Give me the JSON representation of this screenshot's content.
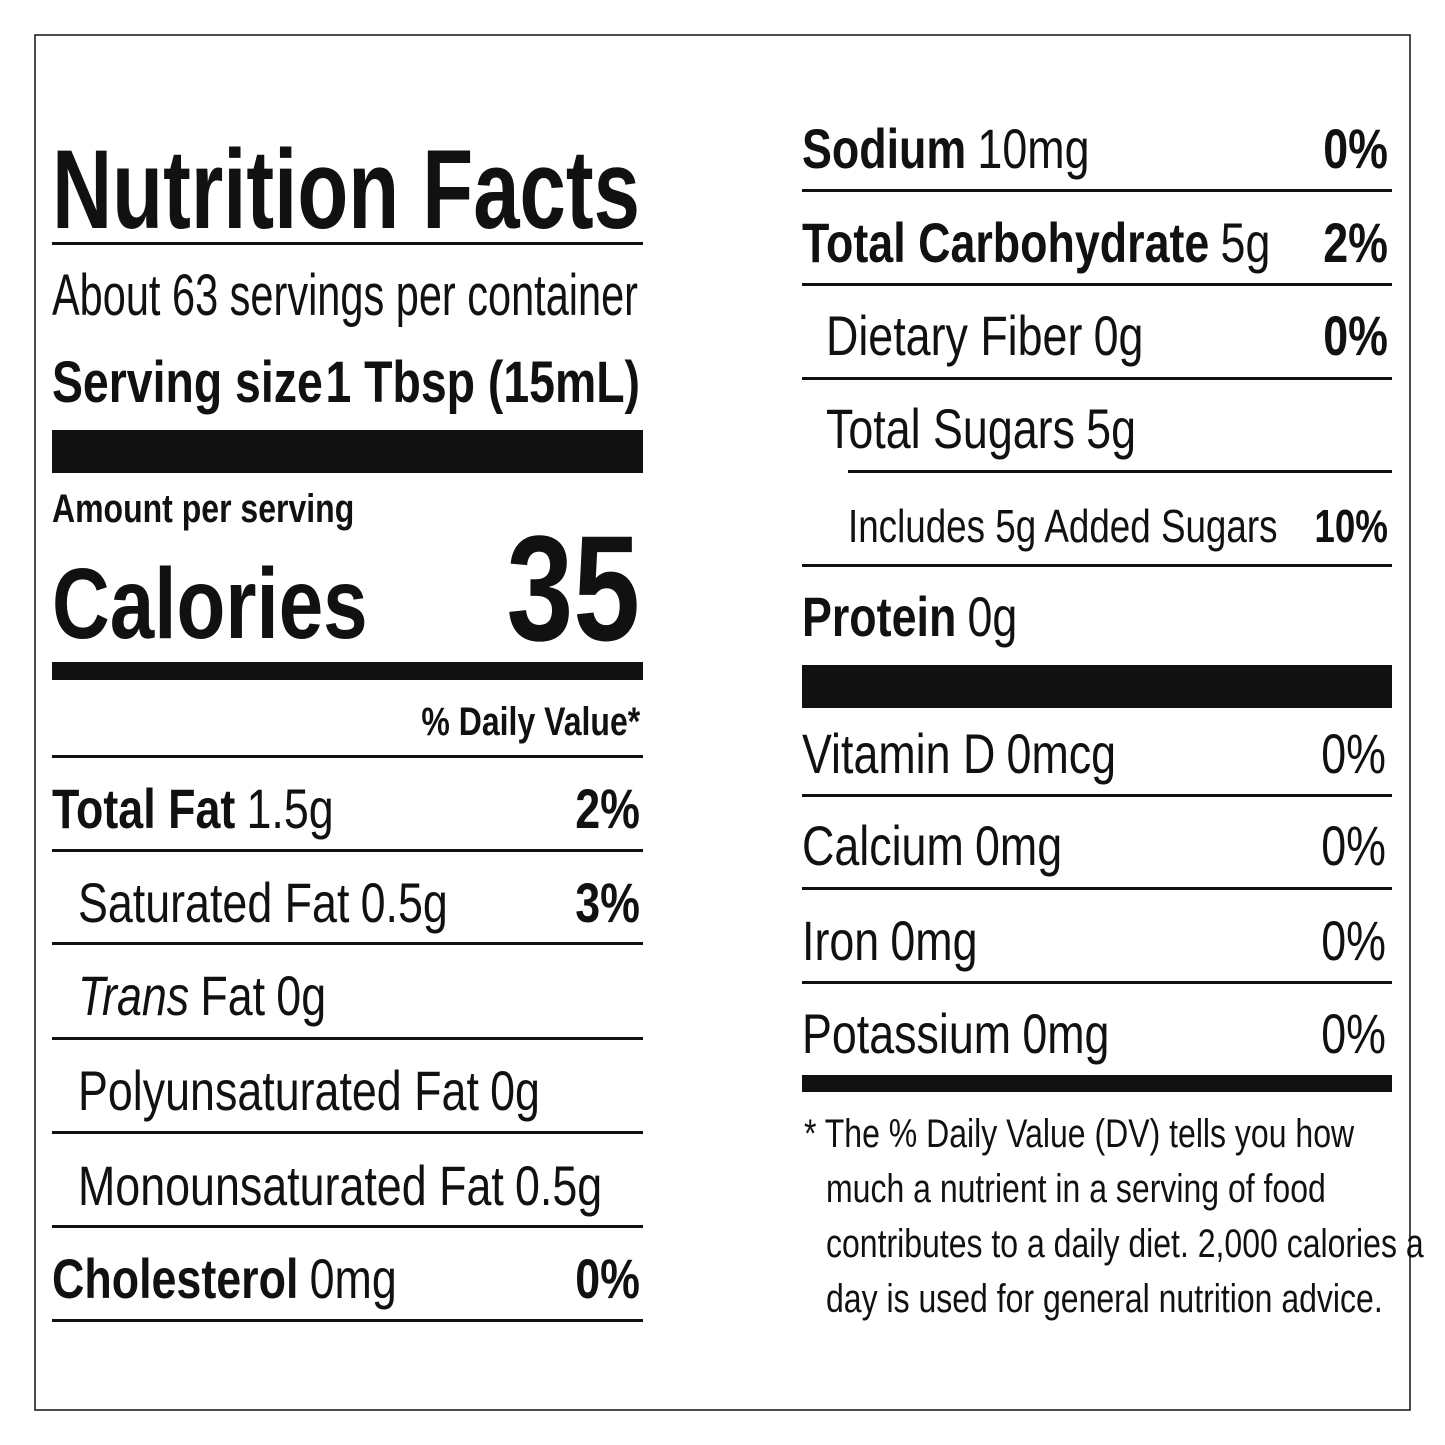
{
  "title": "Nutrition Facts",
  "servings_per_container": "About 63 servings per container",
  "serving_size": {
    "label": "Serving size",
    "value": "1 Tbsp (15mL)"
  },
  "amount_per_serving": "Amount per serving",
  "calories": {
    "label": "Calories",
    "value": "35"
  },
  "daily_value_header": "% Daily Value*",
  "nutrients": [
    {
      "name": "Total Fat",
      "amount": "1.5g",
      "dv": "2%"
    },
    {
      "name": "Saturated Fat",
      "amount": "0.5g",
      "dv": "3%"
    },
    {
      "prefix": "Trans",
      "name": "Fat",
      "amount": "0g"
    },
    {
      "name": "Polyunsaturated Fat",
      "amount": "0g"
    },
    {
      "name": "Monounsaturated Fat",
      "amount": "0.5g"
    },
    {
      "name": "Cholesterol",
      "amount": "0mg",
      "dv": "0%"
    },
    {
      "name": "Sodium",
      "amount": "10mg",
      "dv": "0%"
    },
    {
      "name": "Total Carbohydrate",
      "amount": "5g",
      "dv": "2%"
    },
    {
      "name": "Dietary Fiber",
      "amount": "0g",
      "dv": "0%"
    },
    {
      "name": "Total Sugars",
      "amount": "5g"
    },
    {
      "name": "Includes 5g Added Sugars",
      "dv": "10%"
    },
    {
      "name": "Protein",
      "amount": "0g"
    }
  ],
  "vitamins": [
    {
      "name": "Vitamin D",
      "amount": "0mcg",
      "dv": "0%"
    },
    {
      "name": "Calcium",
      "amount": "0mg",
      "dv": "0%"
    },
    {
      "name": "Iron",
      "amount": "0mg",
      "dv": "0%"
    },
    {
      "name": "Potassium",
      "amount": "0mg",
      "dv": "0%"
    }
  ],
  "footnote": [
    "* The % Daily Value (DV) tells you how",
    "much a nutrient in a serving of food",
    "contributes to a daily diet. 2,000 calories a",
    "day is used for general nutrition advice."
  ]
}
